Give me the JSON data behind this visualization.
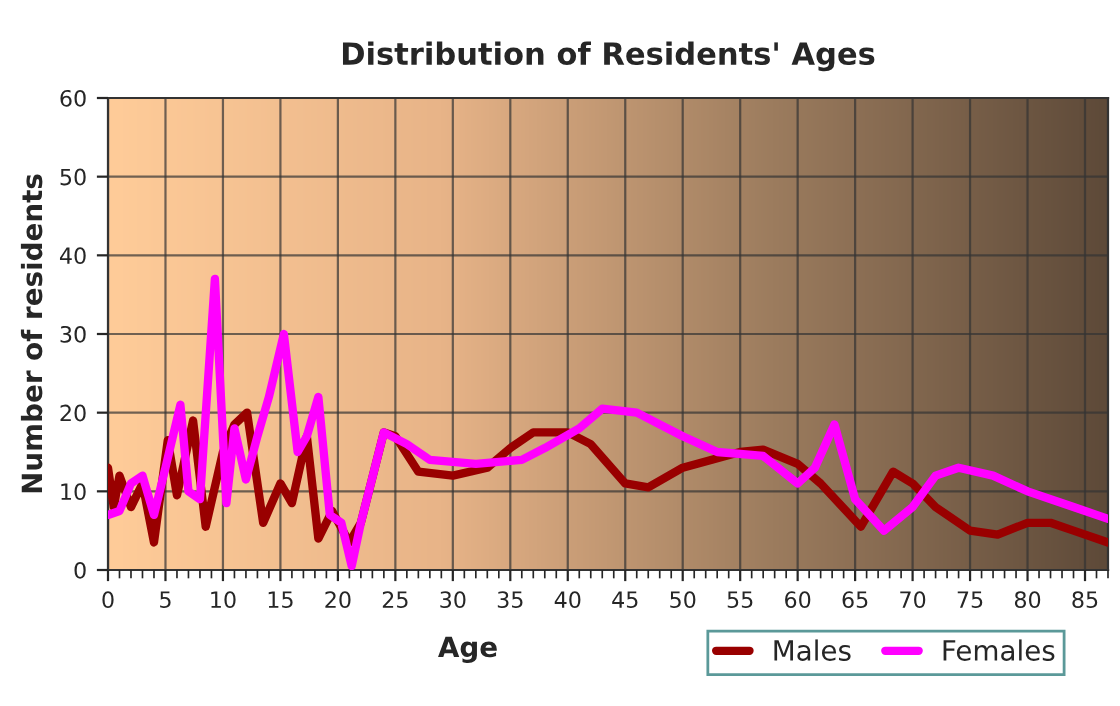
{
  "chart_data": {
    "type": "line",
    "title": "Distribution of Residents' Ages",
    "xlabel": "Age",
    "ylabel": "Number of residents",
    "xlim": [
      0,
      87
    ],
    "xticks": [
      0,
      5,
      10,
      15,
      20,
      25,
      30,
      35,
      40,
      45,
      50,
      55,
      60,
      65,
      70,
      75,
      80,
      85
    ],
    "ylim": [
      0,
      60
    ],
    "yticks": [
      0,
      10,
      20,
      30,
      40,
      50,
      60
    ],
    "grid": true,
    "legend": "bottom right",
    "line_style": "solid",
    "marker": "none",
    "series": [
      {
        "name": "Males",
        "color": "#990000",
        "x": [
          0,
          0.5,
          1,
          2,
          3,
          4,
          5.2,
          6,
          7.4,
          8.5,
          10,
          11,
          12.1,
          13.5,
          15,
          16,
          17.3,
          18.3,
          19.5,
          21,
          22,
          24,
          25,
          27,
          30,
          33,
          35,
          37,
          40,
          42,
          45,
          47,
          50,
          55,
          57,
          60,
          62,
          65.5,
          68.3,
          70,
          72,
          75,
          77.4,
          80,
          82,
          84,
          87
        ],
        "values": [
          13,
          8,
          12,
          8,
          11,
          3.5,
          16.5,
          9.5,
          19,
          5.5,
          15,
          18.5,
          20,
          6,
          11,
          8.5,
          17,
          4,
          7.5,
          3.5,
          6,
          17.5,
          17,
          12.5,
          12,
          13,
          15.5,
          17.5,
          17.5,
          16,
          11,
          10.5,
          13,
          15,
          15.3,
          13.5,
          11,
          5.5,
          12.5,
          11,
          8,
          5,
          4.5,
          6,
          6,
          5,
          3.5
        ]
      },
      {
        "name": "Females",
        "color": "#ff00ff",
        "x": [
          0,
          1,
          2,
          3,
          4,
          5,
          6.3,
          7,
          8,
          9.3,
          10.3,
          11,
          12,
          13,
          14,
          15.3,
          16.5,
          17.3,
          18.3,
          19.3,
          20.3,
          21.2,
          22,
          24,
          26,
          28,
          32,
          36,
          38,
          41,
          43,
          46,
          50,
          53,
          57,
          60,
          61.5,
          63.2,
          65,
          67.5,
          70,
          72,
          74,
          77,
          80,
          84,
          87
        ],
        "values": [
          7,
          7.5,
          11,
          12,
          7,
          13,
          21,
          10,
          9,
          37,
          8.5,
          18,
          11.5,
          17,
          22,
          30,
          15,
          17,
          22,
          7,
          6,
          0.5,
          6,
          17.5,
          16,
          14,
          13.5,
          14,
          15.5,
          18,
          20.5,
          20,
          17,
          15,
          14.5,
          11,
          13,
          18.5,
          9,
          5,
          8,
          12,
          13,
          12,
          10,
          8,
          6.5
        ]
      }
    ]
  }
}
